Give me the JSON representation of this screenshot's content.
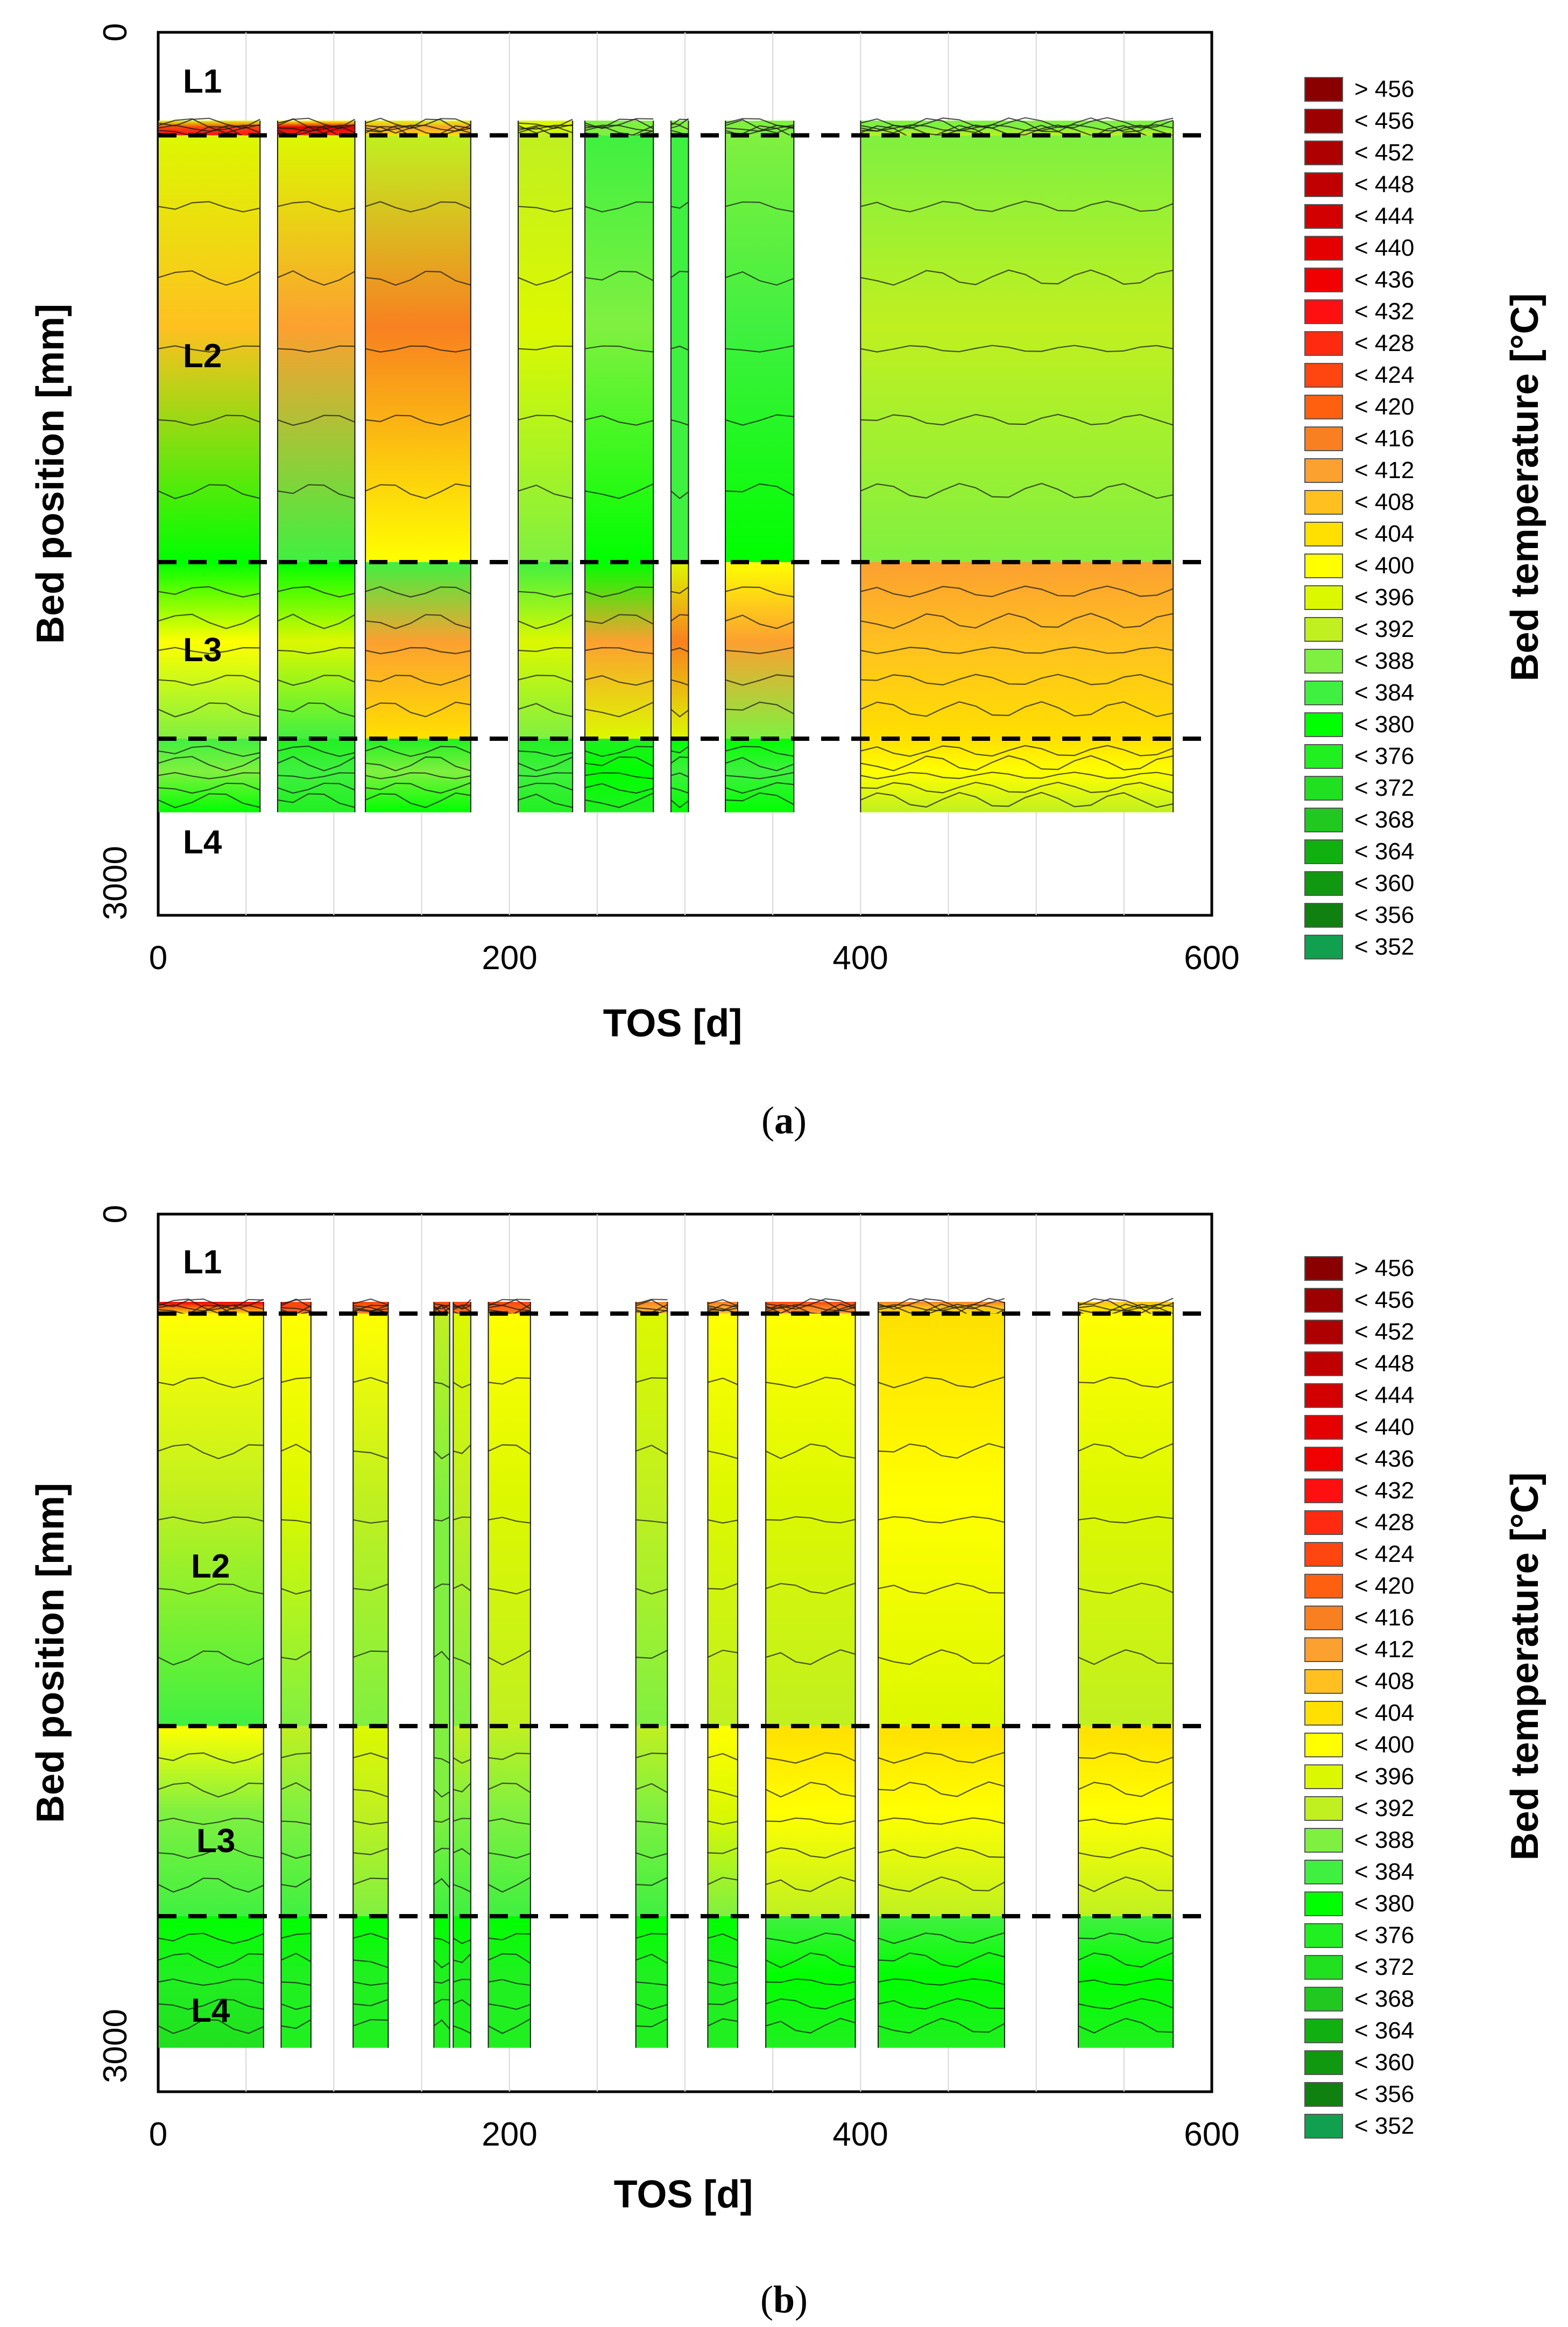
{
  "chart_data": [
    {
      "panel": "a",
      "type": "heatmap",
      "caption_letter": "a",
      "xlabel": "TOS [d]",
      "ylabel": "Bed position [mm]",
      "colorbar_label": "Bed temperature [°C]",
      "xlim": [
        0,
        600
      ],
      "ylim": [
        0,
        3000
      ],
      "y_inverted": true,
      "x_ticks": [
        "0",
        "200",
        "400",
        "600"
      ],
      "y_ticks": [
        "0",
        "3000"
      ],
      "layer_labels": [
        "L1",
        "L2",
        "L3",
        "L4"
      ],
      "layer_boundaries_mm": [
        350,
        1800,
        2400
      ],
      "data_span_mm": [
        300,
        2650
      ],
      "legend_labels": [
        "> 456",
        "< 456",
        "< 452",
        "< 448",
        "< 444",
        "< 440",
        "< 436",
        "< 432",
        "< 428",
        "< 424",
        "< 420",
        "< 416",
        "< 412",
        "< 408",
        "< 404",
        "< 400",
        "< 396",
        "< 392",
        "< 388",
        "< 384",
        "< 380",
        "< 376",
        "< 372",
        "< 368",
        "< 364",
        "< 360",
        "< 356",
        "< 352"
      ],
      "legend_colors": [
        "#8a0000",
        "#9c0000",
        "#ae0000",
        "#c00000",
        "#d20000",
        "#e40000",
        "#f00000",
        "#ff1010",
        "#ff2a10",
        "#ff4510",
        "#ff6010",
        "#f88020",
        "#fca030",
        "#ffc020",
        "#ffe000",
        "#ffff00",
        "#dcf800",
        "#c0f020",
        "#80f040",
        "#40f040",
        "#00ff00",
        "#20f020",
        "#20e020",
        "#20c820",
        "#10b010",
        "#109810",
        "#108010",
        "#10a050"
      ],
      "segments": [
        {
          "x": [
            0,
            58
          ],
          "bands": [
            [
              396,
              424,
              432
            ],
            [
              396,
              408,
              380
            ],
            [
              380,
              400,
              388
            ],
            [
              384,
              388,
              380
            ]
          ]
        },
        {
          "x": [
            68,
            112
          ],
          "bands": [
            [
              400,
              440,
              428
            ],
            [
              396,
              412,
              384
            ],
            [
              380,
              396,
              384
            ],
            [
              376,
              384,
              376
            ]
          ]
        },
        {
          "x": [
            118,
            178
          ],
          "bands": [
            [
              396,
              412,
              404
            ],
            [
              392,
              416,
              400
            ],
            [
              384,
              412,
              404
            ],
            [
              376,
              388,
              380
            ]
          ]
        },
        {
          "x": [
            205,
            236
          ],
          "bands": [
            [
              396,
              396,
              392
            ],
            [
              392,
              396,
              388
            ],
            [
              384,
              396,
              388
            ],
            [
              376,
              384,
              376
            ]
          ]
        },
        {
          "x": [
            243,
            282
          ],
          "bands": [
            [
              388,
              388,
              388
            ],
            [
              384,
              388,
              380
            ],
            [
              380,
              412,
              396
            ],
            [
              376,
              380,
              376
            ]
          ]
        },
        {
          "x": [
            292,
            302
          ],
          "bands": [
            [
              388,
              388,
              388
            ],
            [
              384,
              384,
              384
            ],
            [
              396,
              416,
              396
            ],
            [
              380,
              384,
              380
            ]
          ]
        },
        {
          "x": [
            323,
            362
          ],
          "bands": [
            [
              388,
              388,
              388
            ],
            [
              388,
              384,
              380
            ],
            [
              400,
              412,
              388
            ],
            [
              380,
              384,
              380
            ]
          ]
        },
        {
          "x": [
            400,
            578
          ],
          "bands": [
            [
              388,
              388,
              392
            ],
            [
              388,
              392,
              388
            ],
            [
              412,
              408,
              404
            ],
            [
              404,
              400,
              392
            ]
          ]
        }
      ]
    },
    {
      "panel": "b",
      "type": "heatmap",
      "caption_letter": "b",
      "xlabel": "TOS [d]",
      "ylabel": "Bed position [mm]",
      "colorbar_label": "Bed temperature [°C]",
      "xlim": [
        0,
        600
      ],
      "ylim": [
        0,
        3000
      ],
      "y_inverted": true,
      "x_ticks": [
        "0",
        "200",
        "400",
        "600"
      ],
      "y_ticks": [
        "0",
        "3000"
      ],
      "layer_labels": [
        "L1",
        "L2",
        "L3",
        "L4"
      ],
      "layer_boundaries_mm": [
        340,
        1750,
        2400
      ],
      "data_span_mm": [
        300,
        2850
      ],
      "legend_labels": [
        "> 456",
        "< 456",
        "< 452",
        "< 448",
        "< 444",
        "< 440",
        "< 436",
        "< 432",
        "< 428",
        "< 424",
        "< 420",
        "< 416",
        "< 412",
        "< 408",
        "< 404",
        "< 400",
        "< 396",
        "< 392",
        "< 388",
        "< 384",
        "< 380",
        "< 376",
        "< 372",
        "< 368",
        "< 364",
        "< 360",
        "< 356",
        "< 352"
      ],
      "legend_colors": [
        "#8a0000",
        "#9c0000",
        "#ae0000",
        "#c00000",
        "#d20000",
        "#e40000",
        "#f00000",
        "#ff1010",
        "#ff2a10",
        "#ff4510",
        "#ff6010",
        "#f88020",
        "#fca030",
        "#ffc020",
        "#ffe000",
        "#ffff00",
        "#dcf800",
        "#c0f020",
        "#80f040",
        "#40f040",
        "#00ff00",
        "#20f020",
        "#20e020",
        "#20c820",
        "#10b010",
        "#109810",
        "#108010",
        "#10a050"
      ],
      "segments": [
        {
          "x": [
            0,
            60
          ],
          "bands": [
            [
              436,
              420,
              404
            ],
            [
              400,
              392,
              384
            ],
            [
              400,
              388,
              384
            ],
            [
              380,
              376,
              372
            ]
          ]
        },
        {
          "x": [
            70,
            87
          ],
          "bands": [
            [
              424,
              424,
              416
            ],
            [
              400,
              396,
              388
            ],
            [
              392,
              388,
              384
            ],
            [
              380,
              376,
              376
            ]
          ]
        },
        {
          "x": [
            111,
            131
          ],
          "bands": [
            [
              424,
              420,
              416
            ],
            [
              400,
              392,
              388
            ],
            [
              396,
              392,
              388
            ],
            [
              380,
              376,
              376
            ]
          ]
        },
        {
          "x": [
            157,
            166
          ],
          "bands": [
            [
              424,
              420,
              416
            ],
            [
              392,
              388,
              388
            ],
            [
              388,
              388,
              384
            ],
            [
              380,
              376,
              376
            ]
          ]
        },
        {
          "x": [
            168,
            178
          ],
          "bands": [
            [
              424,
              420,
              416
            ],
            [
              396,
              392,
              388
            ],
            [
              392,
              388,
              384
            ],
            [
              380,
              376,
              376
            ]
          ]
        },
        {
          "x": [
            188,
            212
          ],
          "bands": [
            [
              424,
              420,
              416
            ],
            [
              400,
              396,
              392
            ],
            [
              392,
              388,
              384
            ],
            [
              380,
              376,
              376
            ]
          ]
        },
        {
          "x": [
            272,
            290
          ],
          "bands": [
            [
              416,
              412,
              408
            ],
            [
              396,
              392,
              388
            ],
            [
              392,
              388,
              384
            ],
            [
              380,
              376,
              376
            ]
          ]
        },
        {
          "x": [
            313,
            330
          ],
          "bands": [
            [
              416,
              412,
              408
            ],
            [
              400,
              396,
              392
            ],
            [
              400,
              396,
              388
            ],
            [
              380,
              376,
              376
            ]
          ]
        },
        {
          "x": [
            346,
            397
          ],
          "bands": [
            [
              424,
              416,
              412
            ],
            [
              400,
              396,
              392
            ],
            [
              404,
              400,
              392
            ],
            [
              384,
              380,
              376
            ]
          ]
        },
        {
          "x": [
            410,
            482
          ],
          "bands": [
            [
              416,
              408,
              404
            ],
            [
              404,
              400,
              396
            ],
            [
              404,
              400,
              392
            ],
            [
              384,
              380,
              376
            ]
          ]
        },
        {
          "x": [
            524,
            578
          ],
          "bands": [
            [
              408,
              404,
              404
            ],
            [
              400,
              396,
              392
            ],
            [
              404,
              400,
              392
            ],
            [
              384,
              380,
              376
            ]
          ]
        }
      ]
    }
  ]
}
